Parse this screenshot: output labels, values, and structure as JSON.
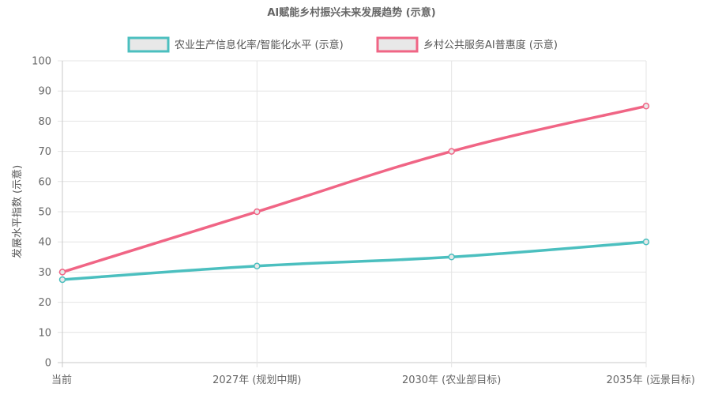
{
  "chart_data": {
    "type": "line",
    "title": "AI赋能乡村振兴未来发展趋势 (示意)",
    "ylabel": "发展水平指数 (示意)",
    "xlabel": "",
    "categories": [
      "当前",
      "2027年 (规划中期)",
      "2030年 (农业部目标)",
      "2035年 (远景目标)"
    ],
    "ylim": [
      0,
      100
    ],
    "yticks": [
      0,
      10,
      20,
      30,
      40,
      50,
      60,
      70,
      80,
      90,
      100
    ],
    "grid": true,
    "legend_position": "top",
    "series": [
      {
        "name": "农业生产信息化率/智能化水平 (示意)",
        "values": [
          27.5,
          32,
          35,
          40
        ],
        "color": "#4bbfbf"
      },
      {
        "name": "乡村公共服务AI普惠度 (示意)",
        "values": [
          30,
          50,
          70,
          85
        ],
        "color": "#f06585"
      }
    ]
  }
}
